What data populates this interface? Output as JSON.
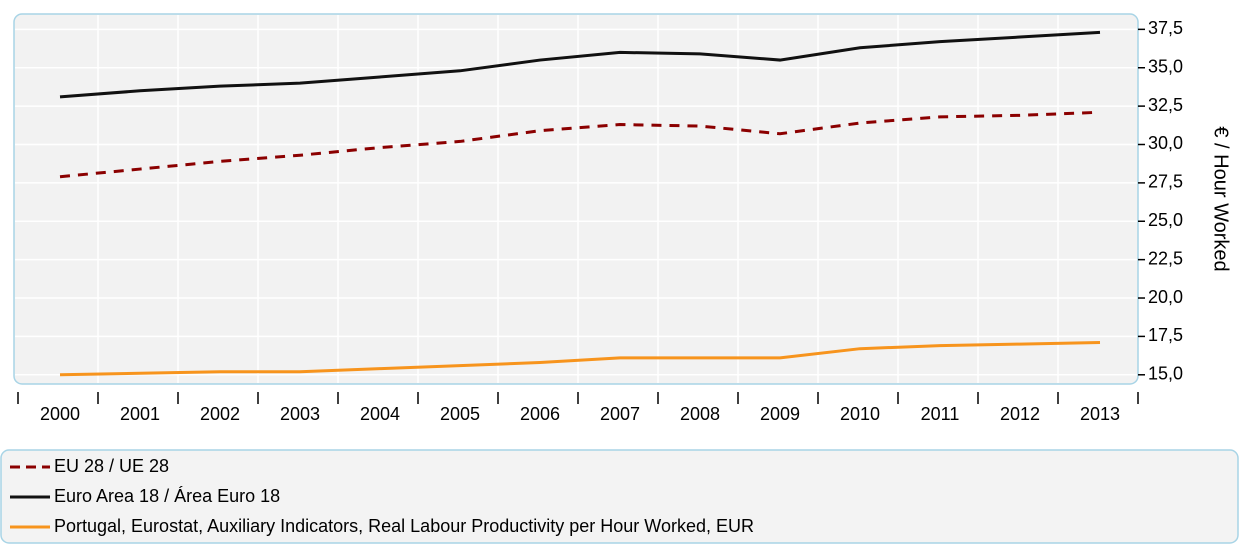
{
  "chart_data": {
    "type": "line",
    "y_label": "€ / Hour Worked",
    "categories": [
      "2000",
      "2001",
      "2002",
      "2003",
      "2004",
      "2005",
      "2006",
      "2007",
      "2008",
      "2009",
      "2010",
      "2011",
      "2012",
      "2013"
    ],
    "series": [
      {
        "name": "EU 28 / UE 28",
        "color": "#8b0000",
        "dash": true,
        "values": [
          27.9,
          28.4,
          28.9,
          29.3,
          29.8,
          30.2,
          30.9,
          31.3,
          31.2,
          30.7,
          31.4,
          31.8,
          31.9,
          32.1
        ]
      },
      {
        "name": "Euro Area 18 / Área Euro 18",
        "color": "#111111",
        "dash": false,
        "values": [
          33.1,
          33.5,
          33.8,
          34.0,
          34.4,
          34.8,
          35.5,
          36.0,
          35.9,
          35.5,
          36.3,
          36.7,
          37.0,
          37.3
        ]
      },
      {
        "name": "Portugal, Eurostat, Auxiliary Indicators, Real Labour Productivity per Hour Worked, EUR",
        "color": "#f7941d",
        "dash": false,
        "values": [
          15.0,
          15.1,
          15.2,
          15.2,
          15.4,
          15.6,
          15.8,
          16.1,
          16.1,
          16.1,
          16.7,
          16.9,
          17.0,
          17.1
        ]
      }
    ],
    "ylim": [
      14.4,
      38.5
    ],
    "yticks": [
      {
        "value": 15,
        "label": "15,0"
      },
      {
        "value": 17.5,
        "label": "17,5"
      },
      {
        "value": 20,
        "label": "20,0"
      },
      {
        "value": 22.5,
        "label": "22,5"
      },
      {
        "value": 25,
        "label": "25,0"
      },
      {
        "value": 27.5,
        "label": "27,5"
      },
      {
        "value": 30,
        "label": "30,0"
      },
      {
        "value": 32.5,
        "label": "32,5"
      },
      {
        "value": 35,
        "label": "35,0"
      },
      {
        "value": 37.5,
        "label": "37,5"
      }
    ],
    "y_axis_side": "right",
    "grid": true
  }
}
